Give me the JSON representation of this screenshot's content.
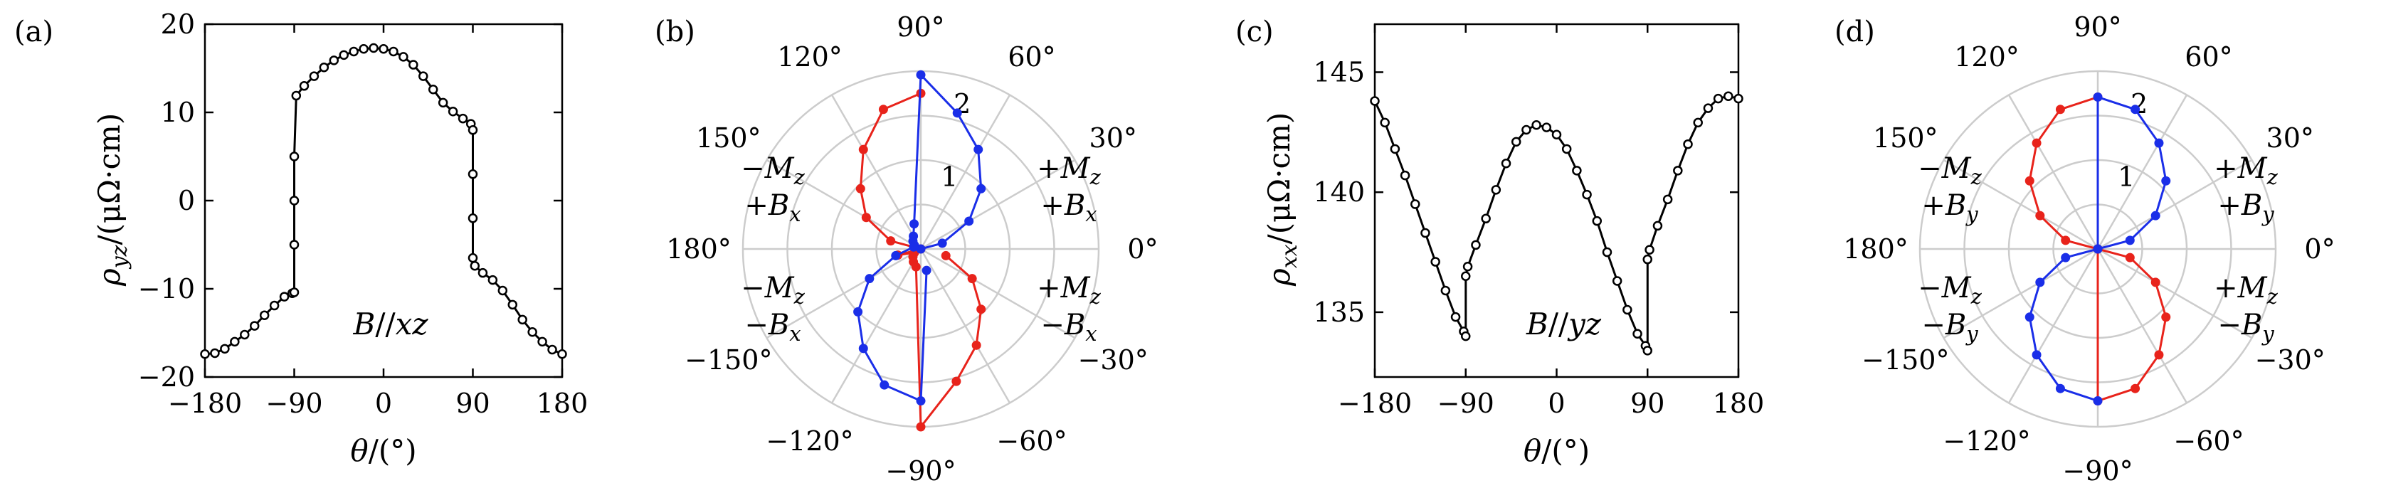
{
  "panels": [
    {
      "id": "a",
      "label": "(a)"
    },
    {
      "id": "b",
      "label": "(b)"
    },
    {
      "id": "c",
      "label": "(c)"
    },
    {
      "id": "d",
      "label": "(d)"
    }
  ],
  "colors": {
    "black": "#000000",
    "red": "#e8231b",
    "blue": "#1a2ee8",
    "grid": "#cccccc"
  },
  "chart_data": [
    {
      "panel": "a",
      "type": "scatter",
      "xlabel": "θ/(°)",
      "ylabel": "ρyz/(μΩ·cm)",
      "annotation": "B//xz",
      "xlim": [
        -180,
        180
      ],
      "ylim": [
        -20,
        20
      ],
      "xticks": [
        "−180",
        "−90",
        "0",
        "90",
        "180"
      ],
      "yticks": [
        "−20",
        "−10",
        "0",
        "10",
        "20"
      ],
      "series": [
        {
          "color": "#000000",
          "x": [
            -180,
            -170,
            -160,
            -150,
            -140,
            -130,
            -120,
            -110,
            -100,
            -92,
            -90,
            -90,
            -90,
            -90,
            -88,
            -80,
            -70,
            -60,
            -50,
            -40,
            -30,
            -20,
            -10,
            0,
            10,
            20,
            30,
            40,
            50,
            60,
            70,
            80,
            88,
            90,
            90,
            90,
            90,
            92,
            100,
            110,
            120,
            130,
            140,
            150,
            160,
            170,
            180
          ],
          "y": [
            -17.4,
            -17.3,
            -16.8,
            -16.0,
            -15.2,
            -14.2,
            -13.0,
            -11.9,
            -10.9,
            -10.5,
            -10.4,
            -5,
            0,
            5,
            11.9,
            13.0,
            14.1,
            15.1,
            15.9,
            16.5,
            16.9,
            17.2,
            17.3,
            17.2,
            16.9,
            16.3,
            15.4,
            14.1,
            12.6,
            11.1,
            10.1,
            9.3,
            8.7,
            8.0,
            3,
            -2,
            -6.5,
            -7.4,
            -8.2,
            -9.0,
            -10.2,
            -11.8,
            -13.5,
            -14.9,
            -16.0,
            -16.9,
            -17.4
          ]
        }
      ]
    },
    {
      "panel": "b",
      "type": "polar",
      "angle_labels": [
        "90°",
        "60°",
        "30°",
        "0°",
        "−30°",
        "−60°",
        "−90°",
        "−120°",
        "−150°",
        "180°",
        "150°",
        "120°"
      ],
      "radial_ticks": [
        "1",
        "2"
      ],
      "rlim": [
        0,
        2.4
      ],
      "annotations": [
        {
          "line1": "+Mz",
          "line2": "+Bx",
          "quadrant": "upper-right"
        },
        {
          "line1": "−Mz",
          "line2": "+Bx",
          "quadrant": "upper-left"
        },
        {
          "line1": "−Mz",
          "line2": "−Bx",
          "quadrant": "lower-left"
        },
        {
          "line1": "+Mz",
          "line2": "−Bx",
          "quadrant": "lower-right"
        }
      ],
      "series": [
        {
          "color": "#e8231b",
          "theta": [
            90,
            105,
            120,
            135,
            150,
            165,
            180,
            195,
            210,
            225,
            240,
            255,
            270,
            285,
            300,
            315,
            330,
            345
          ],
          "r": [
            2.1,
            1.95,
            1.55,
            1.15,
            0.85,
            0.42,
            0.0,
            0.32,
            0.1,
            0.15,
            0.2,
            0.25,
            2.4,
            1.85,
            1.5,
            1.15,
            0.8,
            0.35
          ]
        },
        {
          "color": "#1a2ee8",
          "theta": [
            0,
            15,
            30,
            45,
            60,
            75,
            90,
            105,
            120,
            135,
            150,
            165,
            195,
            210,
            225,
            240,
            255,
            270,
            285
          ],
          "r": [
            0.0,
            0.3,
            0.75,
            1.15,
            1.55,
            1.9,
            2.35,
            0.35,
            0.2,
            0.15,
            0.1,
            0.1,
            0.35,
            0.8,
            1.2,
            1.55,
            1.9,
            2.05,
            0.3
          ]
        }
      ]
    },
    {
      "panel": "c",
      "type": "scatter",
      "xlabel": "θ/(°)",
      "ylabel": "ρxx/(μΩ·cm)",
      "annotation": "B//yz",
      "xlim": [
        -180,
        180
      ],
      "ylim": [
        132.3,
        147
      ],
      "xticks": [
        "−180",
        "−90",
        "0",
        "90",
        "180"
      ],
      "yticks": [
        "135",
        "140",
        "145"
      ],
      "series": [
        {
          "color": "#000000",
          "x": [
            -180,
            -170,
            -160,
            -150,
            -140,
            -130,
            -120,
            -110,
            -100,
            -92,
            -90,
            -90,
            -88,
            -80,
            -70,
            -60,
            -50,
            -40,
            -30,
            -20,
            -10,
            0,
            10,
            20,
            30,
            40,
            50,
            60,
            70,
            80,
            88,
            90,
            90,
            92,
            100,
            110,
            120,
            130,
            140,
            150,
            160,
            170,
            180
          ],
          "y": [
            143.8,
            142.9,
            141.8,
            140.7,
            139.5,
            138.3,
            137.1,
            135.9,
            134.8,
            134.2,
            134.0,
            136.5,
            136.9,
            137.8,
            138.9,
            140.1,
            141.2,
            142.1,
            142.6,
            142.8,
            142.7,
            142.4,
            141.8,
            140.9,
            139.9,
            138.8,
            137.5,
            136.3,
            135.1,
            134.1,
            133.6,
            133.4,
            137.2,
            137.6,
            138.6,
            139.7,
            140.9,
            142.0,
            142.9,
            143.5,
            143.9,
            144.0,
            143.9
          ]
        }
      ]
    },
    {
      "panel": "d",
      "type": "polar",
      "angle_labels": [
        "90°",
        "60°",
        "30°",
        "0°",
        "−30°",
        "−60°",
        "−90°",
        "−120°",
        "−150°",
        "180°",
        "150°",
        "120°"
      ],
      "radial_ticks": [
        "1",
        "2"
      ],
      "rlim": [
        0,
        2.4
      ],
      "annotations": [
        {
          "line1": "+Mz",
          "line2": "+By",
          "quadrant": "upper-right"
        },
        {
          "line1": "−Mz",
          "line2": "+By",
          "quadrant": "upper-left"
        },
        {
          "line1": "−Mz",
          "line2": "−By",
          "quadrant": "lower-left"
        },
        {
          "line1": "+Mz",
          "line2": "−By",
          "quadrant": "lower-right"
        }
      ],
      "series": [
        {
          "color": "#e8231b",
          "theta": [
            90,
            105,
            120,
            135,
            150,
            165,
            180,
            270,
            285,
            300,
            315,
            330,
            345,
            360
          ],
          "r": [
            2.05,
            1.95,
            1.65,
            1.3,
            0.9,
            0.45,
            0.0,
            2.05,
            1.95,
            1.65,
            1.3,
            0.9,
            0.45,
            0.0
          ]
        },
        {
          "color": "#1a2ee8",
          "theta": [
            0,
            15,
            30,
            45,
            60,
            75,
            90,
            180,
            195,
            210,
            225,
            240,
            255,
            270
          ],
          "r": [
            0.0,
            0.45,
            0.9,
            1.3,
            1.65,
            1.95,
            2.05,
            0.0,
            0.45,
            0.9,
            1.3,
            1.65,
            1.95,
            2.05
          ]
        }
      ]
    }
  ]
}
